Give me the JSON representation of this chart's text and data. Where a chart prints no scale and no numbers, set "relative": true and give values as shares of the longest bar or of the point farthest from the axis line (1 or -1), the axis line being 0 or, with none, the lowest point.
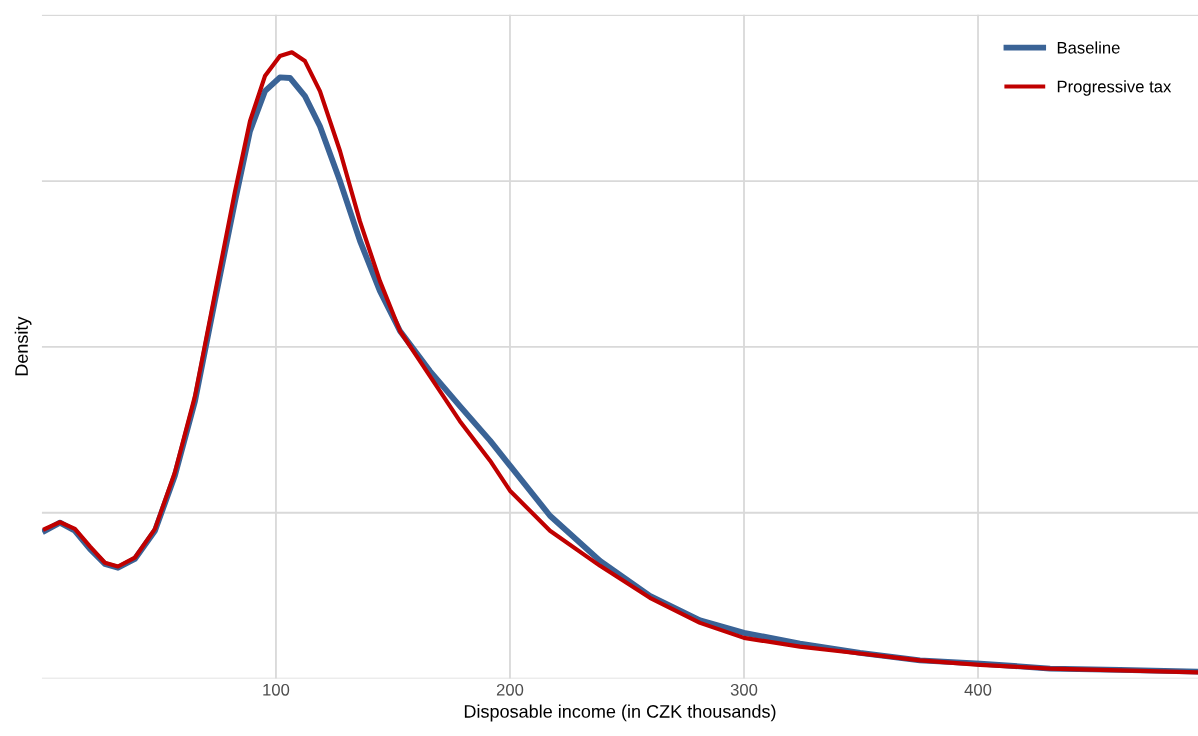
{
  "chart_data": {
    "type": "line",
    "xlabel": "Disposable income (in CZK thousands)",
    "ylabel": "Density",
    "relative": true,
    "xlim": [
      0,
      494
    ],
    "xticks": [
      100,
      200,
      300,
      400
    ],
    "grid": true,
    "legend": "top right",
    "marker": "none",
    "line_style": "solid",
    "series": [
      {
        "name": "Baseline",
        "color": "#3a6396",
        "x": [
          1.3,
          7.7,
          14.1,
          20.5,
          26.9,
          32.5,
          39.7,
          48.3,
          56.8,
          65.4,
          73.9,
          82.5,
          88.9,
          95.3,
          101.7,
          106,
          112.4,
          118.8,
          127.4,
          135.9,
          144.4,
          153,
          165.8,
          178.6,
          191.5,
          200,
          217.1,
          238.5,
          259.8,
          281.2,
          300,
          323.9,
          349.6,
          375.2,
          400.9,
          430.8,
          460.7,
          494
        ],
        "values": [
          0.236,
          0.249,
          0.236,
          0.207,
          0.183,
          0.177,
          0.191,
          0.236,
          0.324,
          0.443,
          0.603,
          0.762,
          0.874,
          0.938,
          0.96,
          0.959,
          0.93,
          0.882,
          0.794,
          0.699,
          0.619,
          0.555,
          0.491,
          0.435,
          0.38,
          0.34,
          0.26,
          0.188,
          0.132,
          0.093,
          0.073,
          0.056,
          0.041,
          0.029,
          0.024,
          0.016,
          0.014,
          0.011
        ]
      },
      {
        "name": "Progressive tax",
        "color": "#c00000",
        "x": [
          1.3,
          7.7,
          14.1,
          20.5,
          26.9,
          32.5,
          39.7,
          48.3,
          56.8,
          65.4,
          73.9,
          82.5,
          88.9,
          95.3,
          101.7,
          106.8,
          112.4,
          118.8,
          127.4,
          135.9,
          144.4,
          153,
          165.8,
          178.6,
          191.5,
          200,
          217.1,
          238.5,
          259.8,
          281.2,
          300,
          323.9,
          349.6,
          375.2,
          400.9,
          430.8,
          460.7,
          494
        ],
        "values": [
          0.239,
          0.25,
          0.239,
          0.211,
          0.185,
          0.179,
          0.193,
          0.239,
          0.329,
          0.451,
          0.614,
          0.778,
          0.89,
          0.962,
          0.994,
          1.0,
          0.986,
          0.938,
          0.842,
          0.73,
          0.635,
          0.555,
          0.483,
          0.411,
          0.348,
          0.3,
          0.236,
          0.18,
          0.129,
          0.089,
          0.065,
          0.051,
          0.04,
          0.029,
          0.022,
          0.016,
          0.013,
          0.01
        ]
      }
    ]
  }
}
